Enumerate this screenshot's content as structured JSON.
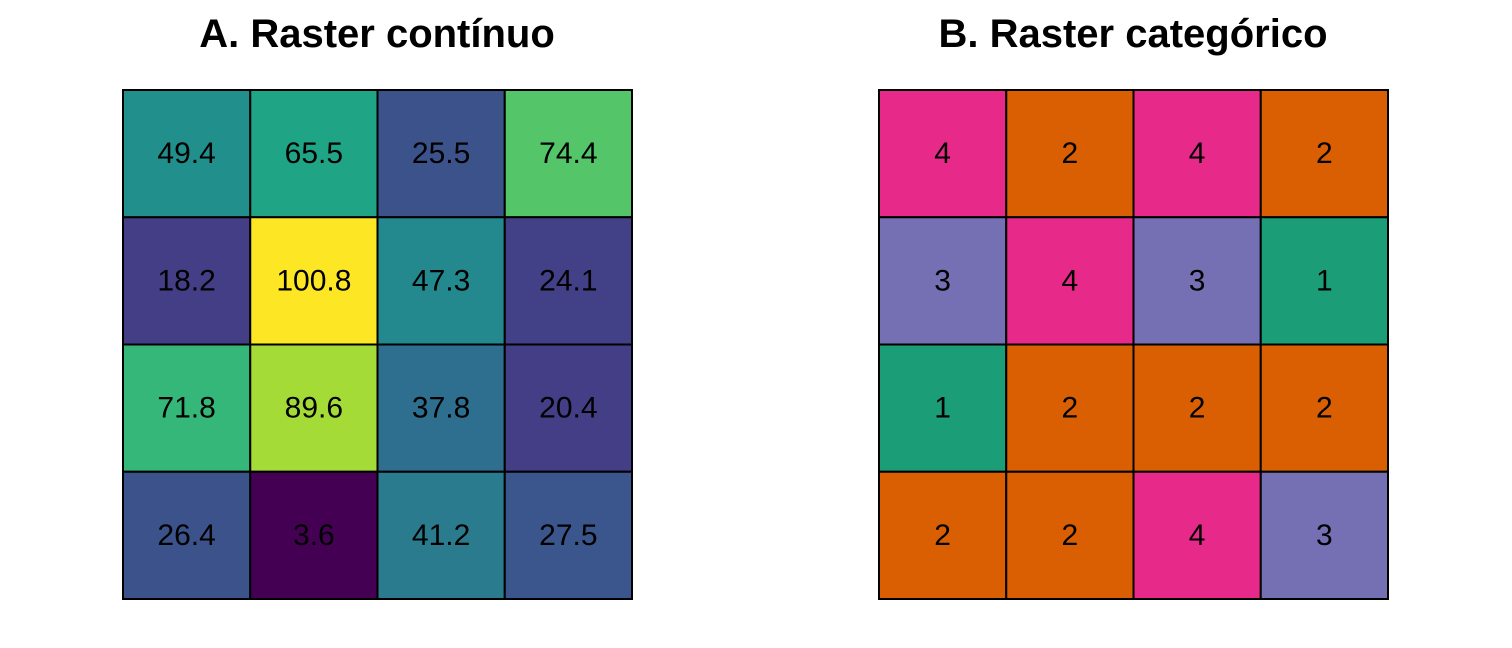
{
  "chart_data": [
    {
      "type": "heatmap",
      "title": "A. Raster contínuo",
      "rows": 4,
      "cols": 4,
      "values": [
        [
          49.4,
          65.5,
          25.5,
          74.4
        ],
        [
          18.2,
          100.8,
          47.3,
          24.1
        ],
        [
          71.8,
          89.6,
          37.8,
          20.4
        ],
        [
          26.4,
          3.6,
          41.2,
          27.5
        ]
      ],
      "labels": [
        [
          "49.4",
          "65.5",
          "25.5",
          "74.4"
        ],
        [
          "18.2",
          "100.8",
          "47.3",
          "24.1"
        ],
        [
          "71.8",
          "89.6",
          "37.8",
          "20.4"
        ],
        [
          "26.4",
          "3.6",
          "41.2",
          "27.5"
        ]
      ],
      "colors": [
        [
          "#21908d",
          "#20a486",
          "#3b528b",
          "#54c568"
        ],
        [
          "#433e85",
          "#fde725",
          "#23898e",
          "#424086"
        ],
        [
          "#35b779",
          "#a5db36",
          "#2e6e8e",
          "#433e85"
        ],
        [
          "#3b528b",
          "#440154",
          "#2a7b8e",
          "#3a568c"
        ]
      ],
      "legend": "none",
      "grid": true
    },
    {
      "type": "heatmap",
      "title": "B. Raster categórico",
      "rows": 4,
      "cols": 4,
      "values": [
        [
          4,
          2,
          4,
          2
        ],
        [
          3,
          4,
          3,
          1
        ],
        [
          1,
          2,
          2,
          2
        ],
        [
          2,
          2,
          4,
          3
        ]
      ],
      "labels": [
        [
          "4",
          "2",
          "4",
          "2"
        ],
        [
          "3",
          "4",
          "3",
          "1"
        ],
        [
          "1",
          "2",
          "2",
          "2"
        ],
        [
          "2",
          "2",
          "4",
          "3"
        ]
      ],
      "category_colors": {
        "1": "#1b9e77",
        "2": "#d95f02",
        "3": "#7570b3",
        "4": "#e7298a"
      },
      "legend": "none",
      "grid": true
    }
  ]
}
